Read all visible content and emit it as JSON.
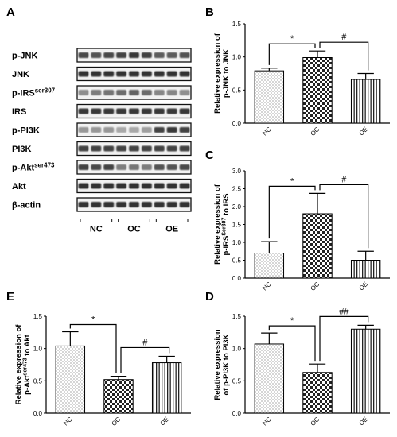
{
  "panels": {
    "A": "A",
    "B": "B",
    "C": "C",
    "D": "D",
    "E": "E"
  },
  "blot": {
    "rows": [
      {
        "label": "p-JNK",
        "sup": ""
      },
      {
        "label": "JNK",
        "sup": ""
      },
      {
        "label": "p-IRS",
        "sup": "ser307"
      },
      {
        "label": "IRS",
        "sup": ""
      },
      {
        "label": "p-PI3K",
        "sup": ""
      },
      {
        "label": "PI3K",
        "sup": ""
      },
      {
        "label": "p-Akt",
        "sup": "ser473"
      },
      {
        "label": "Akt",
        "sup": ""
      },
      {
        "label": "β-actin",
        "sup": ""
      }
    ],
    "groups": [
      "NC",
      "OC",
      "OE"
    ]
  },
  "chart_data": [
    {
      "panel": "B",
      "type": "bar",
      "categories": [
        "NC",
        "OC",
        "OE"
      ],
      "values": [
        0.79,
        0.99,
        0.66
      ],
      "errors": [
        0.04,
        0.1,
        0.09
      ],
      "ylim": [
        0,
        1.5
      ],
      "yticks": [
        "0.0",
        "0.5",
        "1.0",
        "1.5"
      ],
      "ylabel_lines": [
        {
          "text": "Relative expression of",
          "sup": ""
        },
        {
          "text": "p-JNK to JNK",
          "sup": ""
        }
      ],
      "patterns": [
        "dots",
        "checker",
        "hatch"
      ],
      "sig": [
        {
          "from": 0,
          "to": 1,
          "label": "*"
        },
        {
          "from": 1,
          "to": 2,
          "label": "#"
        }
      ]
    },
    {
      "panel": "C",
      "type": "bar",
      "categories": [
        "NC",
        "OC",
        "OE"
      ],
      "values": [
        0.7,
        1.8,
        0.5
      ],
      "errors": [
        0.32,
        0.57,
        0.25
      ],
      "ylim": [
        0,
        3.0
      ],
      "yticks": [
        "0.0",
        "0.5",
        "1.0",
        "1.5",
        "2.0",
        "2.5",
        "3.0"
      ],
      "ylabel_lines": [
        {
          "text": "Relative expression of",
          "sup": ""
        },
        {
          "text": "p-IRS",
          "sup": "Ser307",
          "after": " to IRS"
        }
      ],
      "patterns": [
        "dots",
        "checker",
        "hatch"
      ],
      "sig": [
        {
          "from": 0,
          "to": 1,
          "label": "*"
        },
        {
          "from": 1,
          "to": 2,
          "label": "#"
        }
      ]
    },
    {
      "panel": "E",
      "type": "bar",
      "categories": [
        "NC",
        "OC",
        "OE"
      ],
      "values": [
        1.04,
        0.52,
        0.78
      ],
      "errors": [
        0.22,
        0.05,
        0.1
      ],
      "ylim": [
        0,
        1.5
      ],
      "yticks": [
        "0.0",
        "0.5",
        "1.0",
        "1.5"
      ],
      "ylabel_lines": [
        {
          "text": "Relative expression of",
          "sup": ""
        },
        {
          "text": "p-Akt",
          "sup": "ser473",
          "after": " to Akt"
        }
      ],
      "patterns": [
        "dots",
        "checker",
        "hatch"
      ],
      "sig": [
        {
          "from": 0,
          "to": 1,
          "label": "*"
        },
        {
          "from": 1,
          "to": 2,
          "label": "#"
        }
      ]
    },
    {
      "panel": "D",
      "type": "bar",
      "categories": [
        "NC",
        "OC",
        "OE"
      ],
      "values": [
        1.07,
        0.63,
        1.3
      ],
      "errors": [
        0.17,
        0.13,
        0.06
      ],
      "ylim": [
        0,
        1.5
      ],
      "yticks": [
        "0.0",
        "0.5",
        "1.0",
        "1.5"
      ],
      "ylabel_lines": [
        {
          "text": "Relative expression",
          "sup": ""
        },
        {
          "text": "of p-PI3K to PI3K",
          "sup": ""
        }
      ],
      "patterns": [
        "dots",
        "checker",
        "hatch"
      ],
      "sig": [
        {
          "from": 0,
          "to": 1,
          "label": "*"
        },
        {
          "from": 1,
          "to": 2,
          "label": "##"
        }
      ]
    }
  ]
}
